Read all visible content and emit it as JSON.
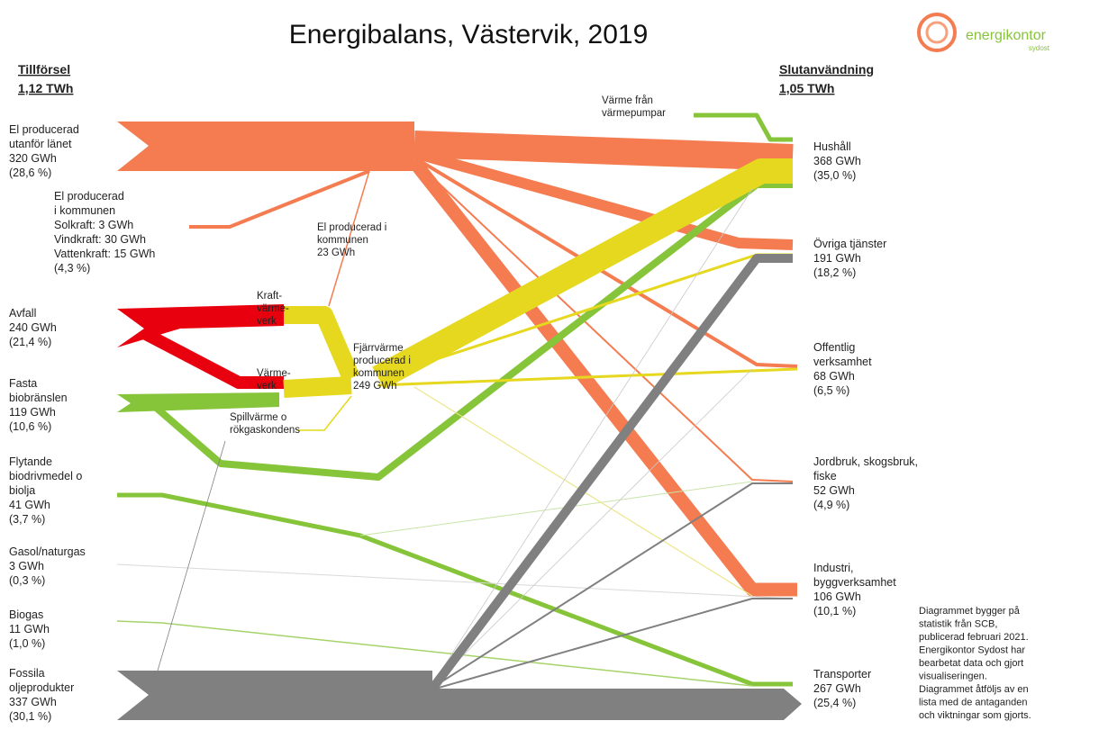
{
  "title": "Energibalans, Västervik, 2019",
  "logo": {
    "name": "energikontor",
    "sub": "sydost"
  },
  "supply": {
    "header": "Tillförsel",
    "total": "1,12 TWh"
  },
  "use": {
    "header": "Slutanvändning",
    "total": "1,05 TWh"
  },
  "sources": [
    [
      "El producerad",
      "utanför länet",
      "320 GWh",
      "(28,6 %)"
    ],
    [
      "El producerad",
      "i kommunen",
      "Solkraft: 3 GWh",
      "Vindkraft: 30 GWh",
      "Vattenkraft: 15 GWh",
      "(4,3 %)"
    ],
    [
      "Avfall",
      "240 GWh",
      "(21,4 %)"
    ],
    [
      "Fasta",
      "biobränslen",
      "119 GWh",
      "(10,6 %)"
    ],
    [
      "Flytande",
      "biodrivmedel o",
      "biolja",
      "41 GWh",
      "(3,7 %)"
    ],
    [
      "Gasol/naturgas",
      "3 GWh",
      "(0,3 %)"
    ],
    [
      "Biogas",
      "11 GWh",
      "(1,0 %)"
    ],
    [
      "Fossila",
      "oljeprodukter",
      "337 GWh",
      "(30,1 %)"
    ]
  ],
  "uses": [
    [
      "Hushåll",
      "368 GWh",
      "(35,0 %)"
    ],
    [
      "Övriga tjänster",
      "191 GWh",
      "(18,2 %)"
    ],
    [
      "Offentlig",
      "verksamhet",
      "68 GWh",
      "(6,5 %)"
    ],
    [
      "Jordbruk, skogsbruk,",
      "fiske",
      "52 GWh",
      "(4,9 %)"
    ],
    [
      "Industri,",
      "byggverksamhet",
      "106 GWh",
      "(10,1 %)"
    ],
    [
      "Transporter",
      "267 GWh",
      "(25,4 %)"
    ]
  ],
  "intermediates": [
    [
      "Värme från",
      "värmepumpar"
    ],
    [
      "El producerad i",
      "kommunen",
      "23 GWh"
    ],
    [
      "Kraft-",
      "värme-",
      "verk"
    ],
    [
      "Värme-",
      "verk"
    ],
    [
      "Fjärrvärme",
      "producerad i",
      "kommunen",
      "249 GWh"
    ],
    [
      "Spillvärme o",
      "rökgaskondens"
    ]
  ],
  "note": [
    "Diagrammet bygger på",
    "statistik från SCB,",
    "publicerad februari 2021.",
    "Energikontor Sydost har",
    "bearbetat data och gjort",
    "visualiseringen.",
    "Diagrammet åtföljs av en",
    "lista med de antaganden",
    "och viktningar som gjorts."
  ]
}
